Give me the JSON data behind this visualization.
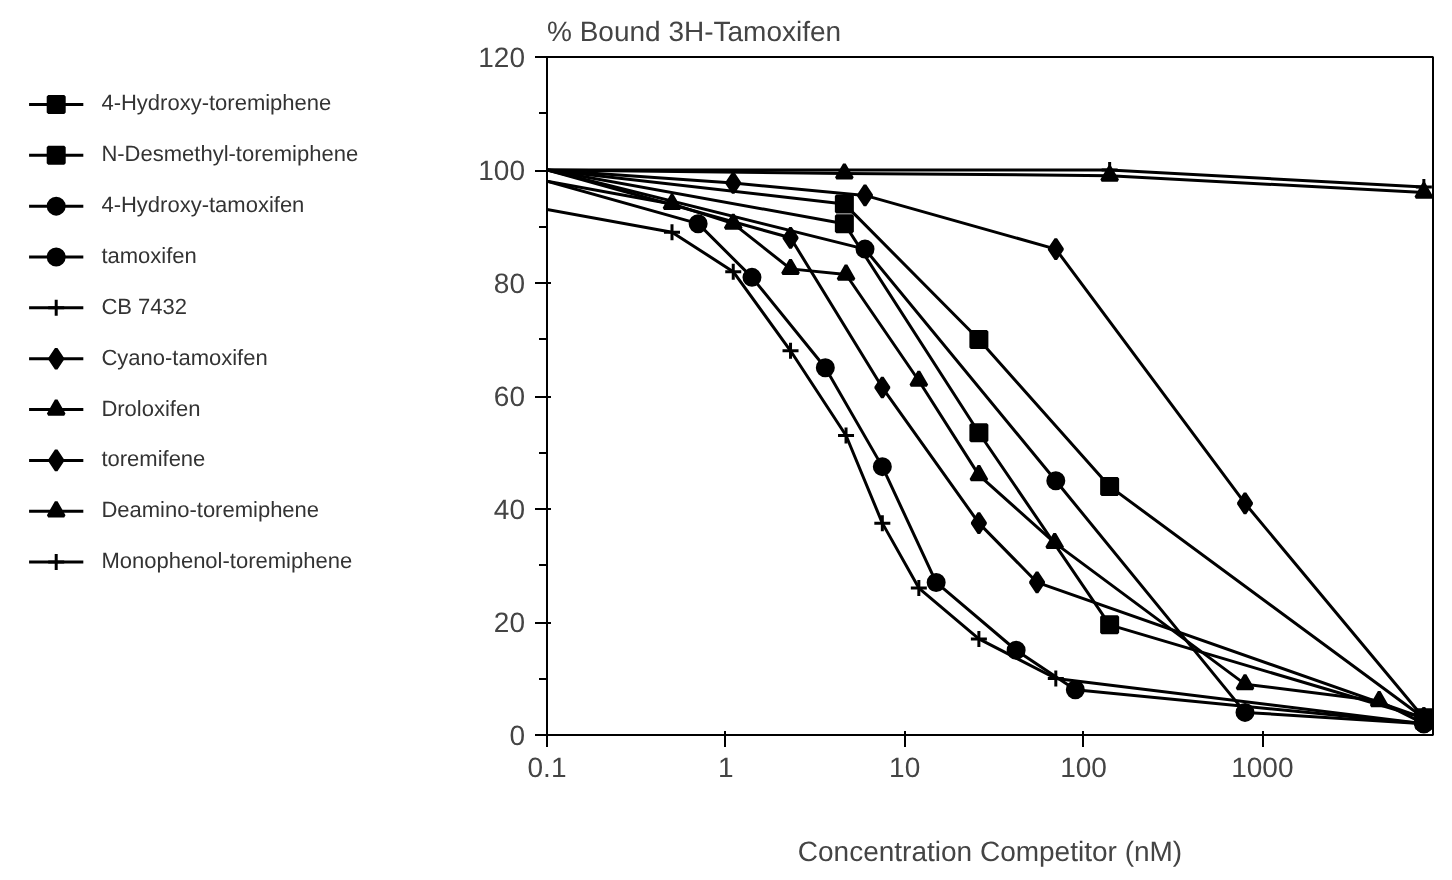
{
  "chart_data": {
    "type": "line",
    "title": "% Bound 3H-Tamoxifen",
    "xlabel": "Concentration Competitor (nM)",
    "log": "x",
    "xlim": [
      0.1,
      9000
    ],
    "xticks": [
      0.1,
      1,
      10,
      100,
      1000
    ],
    "ylim": [
      0,
      120
    ],
    "yticks": [
      0,
      20,
      40,
      60,
      80,
      100,
      120
    ],
    "grid": false,
    "legend": "left",
    "series": [
      {
        "name": "4-Hydroxy-toremiphene",
        "color": "#000000",
        "marker": "square",
        "x": [
          0.1,
          4.6,
          26,
          140,
          8000
        ],
        "values": [
          100,
          90.5,
          53.5,
          19.5,
          3
        ]
      },
      {
        "name": "N-Desmethyl-toremiphene",
        "color": "#000000",
        "marker": "square",
        "x": [
          0.1,
          4.6,
          26,
          140,
          8000
        ],
        "values": [
          100,
          94,
          70,
          44,
          3
        ]
      },
      {
        "name": "4-Hydroxy-tamoxifen",
        "color": "#000000",
        "marker": "circle",
        "x": [
          0.1,
          6,
          70,
          800,
          8000
        ],
        "values": [
          100,
          86,
          45,
          4,
          2
        ]
      },
      {
        "name": "tamoxifen",
        "color": "#000000",
        "marker": "circle",
        "x": [
          0.1,
          0.7,
          1.4,
          3.6,
          7.5,
          15,
          42,
          90,
          8000
        ],
        "values": [
          98,
          90.5,
          81,
          65,
          47.5,
          27,
          15,
          8,
          2
        ]
      },
      {
        "name": "CB 7432",
        "color": "#000000",
        "marker": "cross",
        "x": [
          0.1,
          0.5,
          1.1,
          2.3,
          4.7,
          7.5,
          12,
          26,
          70,
          8000
        ],
        "values": [
          93,
          89,
          82,
          68,
          53,
          37.5,
          26,
          17,
          10,
          2
        ]
      },
      {
        "name": "Cyano-tamoxifen",
        "color": "#000000",
        "marker": "diamond",
        "x": [
          0.1,
          1.1,
          6,
          70,
          800,
          8000
        ],
        "values": [
          100,
          97.7,
          95.5,
          86,
          41,
          3
        ]
      },
      {
        "name": "Droloxifen",
        "color": "#000000",
        "marker": "triangle",
        "x": [
          0.1,
          0.5,
          1.1,
          2.3,
          4.7,
          12,
          26,
          69,
          800,
          4500,
          8000
        ],
        "values": [
          98,
          94,
          90.5,
          82.5,
          81.5,
          62.7,
          46,
          34,
          9,
          6,
          2
        ]
      },
      {
        "name": "toremifene",
        "color": "#000000",
        "marker": "diamond",
        "x": [
          0.1,
          2.3,
          7.5,
          26,
          55,
          8000
        ],
        "values": [
          100,
          88,
          61.5,
          37.5,
          27,
          3
        ]
      },
      {
        "name": "Deamino-toremiphene",
        "color": "#000000",
        "marker": "triangle",
        "x": [
          0.1,
          4.6,
          140,
          8000
        ],
        "values": [
          100,
          99.4,
          99,
          96
        ]
      },
      {
        "name": "Monophenol-toremiphene",
        "color": "#000000",
        "marker": "cross",
        "x": [
          0.1,
          140,
          8000
        ],
        "values": [
          100,
          100,
          97
        ]
      }
    ]
  }
}
